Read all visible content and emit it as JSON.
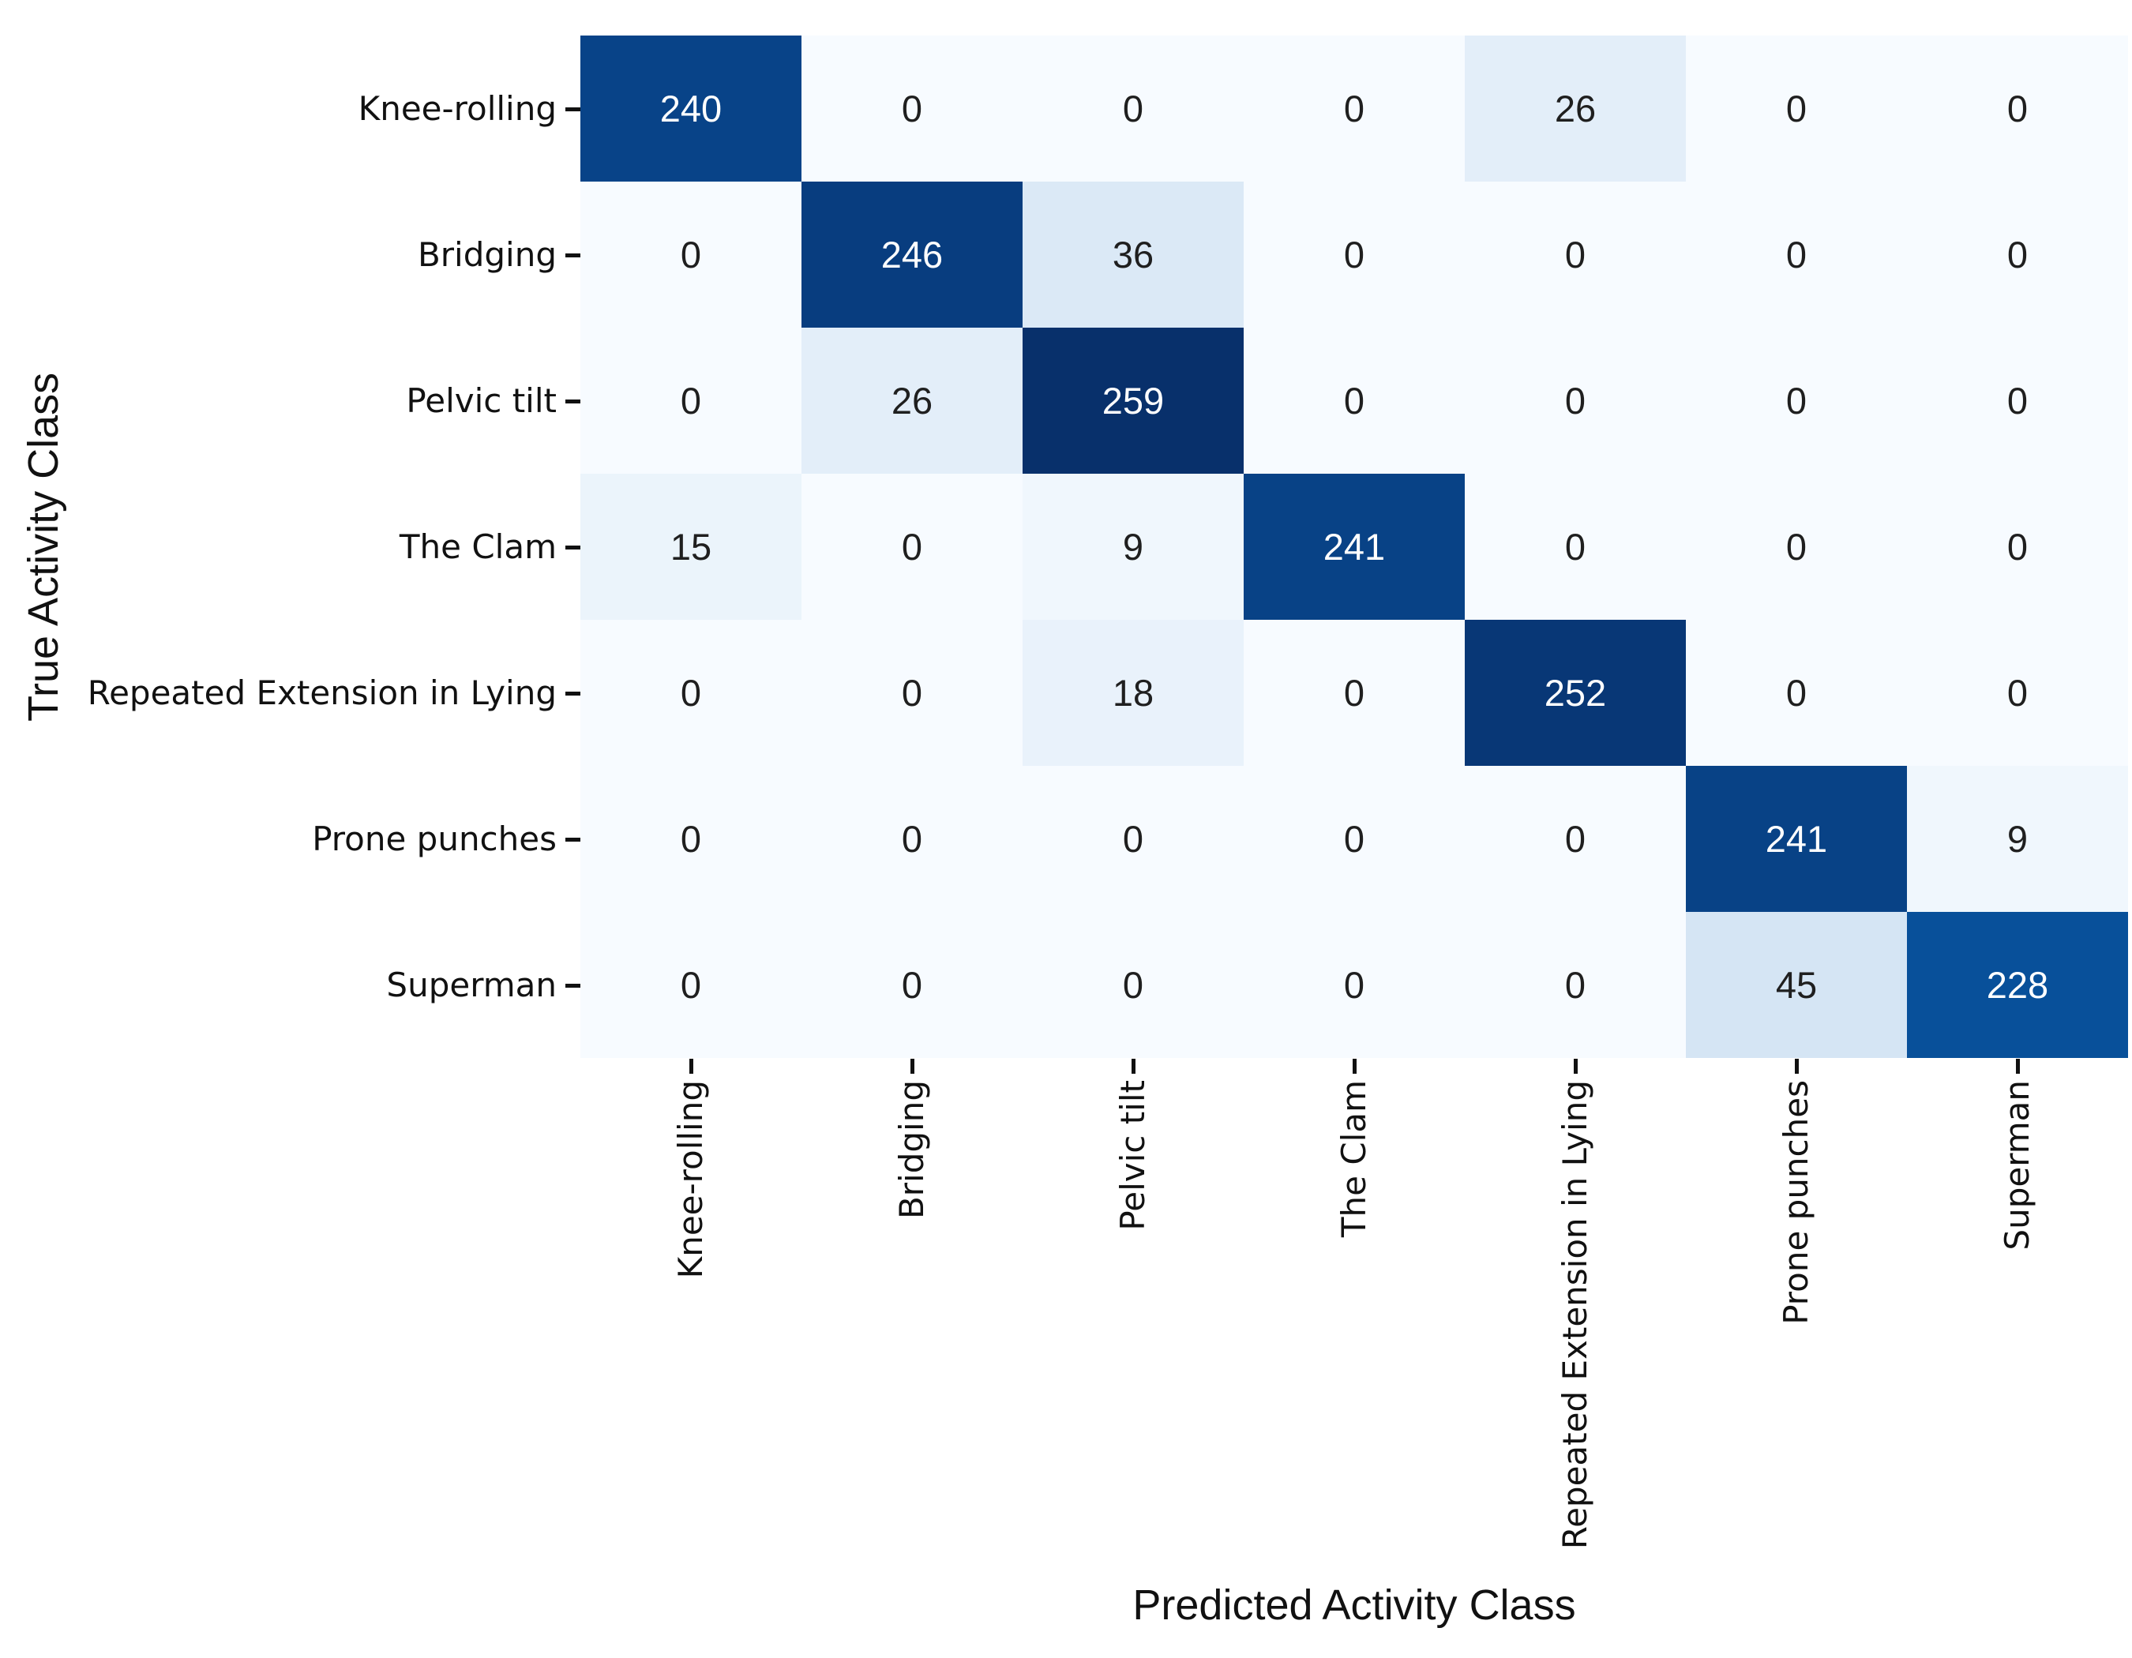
{
  "chart_data": {
    "type": "heatmap",
    "xlabel": "Predicted Activity Class",
    "ylabel": "True Activity Class",
    "x_categories": [
      "Knee-rolling",
      "Bridging",
      "Pelvic tilt",
      "The Clam",
      "Repeated Extension in Lying",
      "Prone punches",
      "Superman"
    ],
    "y_categories": [
      "Knee-rolling",
      "Bridging",
      "Pelvic tilt",
      "The Clam",
      "Repeated Extension in Lying",
      "Prone punches",
      "Superman"
    ],
    "matrix": [
      [
        240,
        0,
        0,
        0,
        26,
        0,
        0
      ],
      [
        0,
        246,
        36,
        0,
        0,
        0,
        0
      ],
      [
        0,
        26,
        259,
        0,
        0,
        0,
        0
      ],
      [
        15,
        0,
        9,
        241,
        0,
        0,
        0
      ],
      [
        0,
        0,
        18,
        0,
        252,
        0,
        0
      ],
      [
        0,
        0,
        0,
        0,
        0,
        241,
        9
      ],
      [
        0,
        0,
        0,
        0,
        0,
        45,
        228
      ]
    ],
    "annotated": true,
    "vmin": 0,
    "vmax": 259,
    "colormap": "Blues",
    "colormap_stops": [
      [
        0.0,
        "#f7fbff"
      ],
      [
        0.125,
        "#deebf7"
      ],
      [
        0.25,
        "#c6dbef"
      ],
      [
        0.375,
        "#9ecae1"
      ],
      [
        0.5,
        "#6baed6"
      ],
      [
        0.625,
        "#4292c6"
      ],
      [
        0.75,
        "#2171b5"
      ],
      [
        0.875,
        "#08519c"
      ],
      [
        1.0,
        "#08306b"
      ]
    ],
    "annot_color_dark": "#1f1f1f",
    "annot_color_light": "#ffffff",
    "tick_color": "#111111",
    "legend": "none",
    "grid": "off"
  }
}
